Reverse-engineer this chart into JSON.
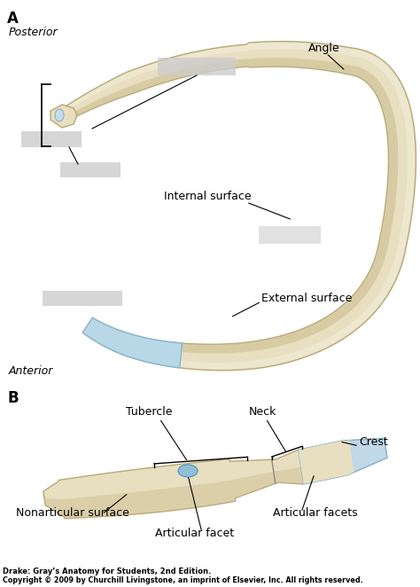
{
  "bg_color": "#ffffff",
  "fig_width": 4.74,
  "fig_height": 6.62,
  "dpi": 100,
  "bone_color": "#e8dfc0",
  "bone_edge_color": "#b8a878",
  "bone_dark": "#c8b888",
  "bone_highlight": "#f5f0e0",
  "cartilage_color": "#b8d8e8",
  "cartilage_edge": "#88b8d0",
  "label_A": "A",
  "label_B": "B",
  "label_posterior": "Posterior",
  "label_anterior": "Anterior",
  "label_angle": "Angle",
  "label_internal": "Internal surface",
  "label_external": "External surface",
  "label_tubercle": "Tubercle",
  "label_neck": "Neck",
  "label_crest": "Crest",
  "label_nonarticular": "Nonarticular surface",
  "label_articular_facets": "Articular facets",
  "label_articular_facet": "Articular facet",
  "citation1": "Drake: Gray’s Anatomy for Students, 2nd Edition.",
  "citation2": "Copyright © 2009 by Churchill Livingstone, an imprint of Elsevier, Inc. All rights reserved."
}
